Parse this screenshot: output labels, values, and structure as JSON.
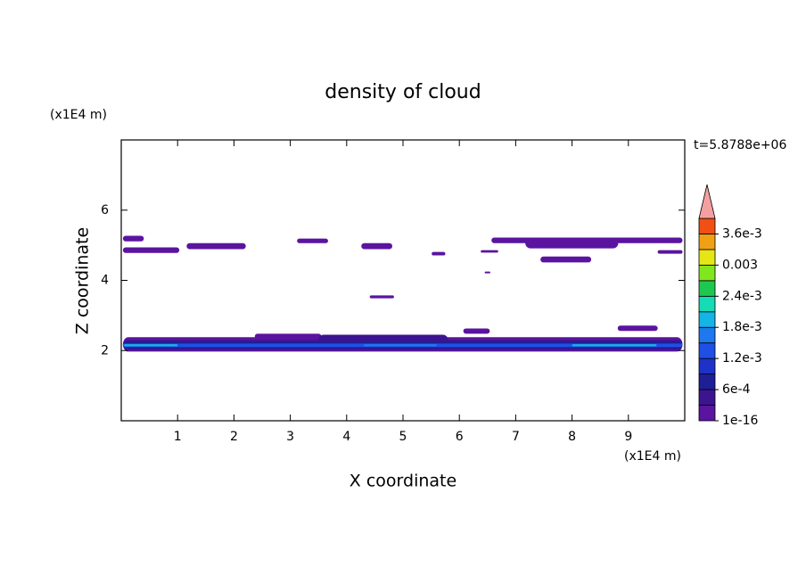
{
  "chart_data": {
    "type": "contour",
    "title": "density of cloud",
    "x_label": "X coordinate",
    "y_label": "Z coordinate",
    "x_unit": "(x1E4 m)",
    "y_unit": "(x1E4 m)",
    "time_label": "t=5.8788e+06",
    "xlim": [
      0,
      10
    ],
    "ylim": [
      0,
      8
    ],
    "xticks": [
      1,
      2,
      3,
      4,
      5,
      6,
      7,
      8,
      9
    ],
    "yticks": [
      2,
      4,
      6
    ],
    "clim": [
      0,
      0.0039
    ],
    "levels": [
      0,
      0.0003,
      0.0006,
      0.0009,
      0.0012,
      0.0015,
      0.0018,
      0.0021,
      0.0024,
      0.0027,
      0.003,
      0.0033,
      0.0036,
      0.0039
    ],
    "colors": [
      "#5a14a0",
      "#3c1490",
      "#1e1e96",
      "#1e32c8",
      "#1e50e6",
      "#1e78f0",
      "#14b4e6",
      "#14dcb4",
      "#1ec850",
      "#82e61e",
      "#e6e614",
      "#f0a014",
      "#f05014"
    ],
    "extend_color": "#f4a0a0",
    "cticks": [
      1e-16,
      {
        "value": 0.0006,
        "label": "6e-4"
      },
      {
        "value": 0.0012,
        "label": "1.2e-3"
      },
      {
        "value": 0.0018,
        "label": "1.8e-3"
      },
      {
        "value": 0.0024,
        "label": "2.4e-3"
      },
      0.003,
      {
        "value": 0.0036,
        "label": "3.6e-3"
      }
    ],
    "patches": [
      {
        "x": [
          0.03,
          0.4
        ],
        "z": [
          5.11,
          5.27
        ],
        "value": 0.00015
      },
      {
        "x": [
          0.03,
          1.03
        ],
        "z": [
          4.78,
          4.94
        ],
        "value": 0.00015
      },
      {
        "x": [
          1.16,
          2.21
        ],
        "z": [
          4.89,
          5.06
        ],
        "value": 0.00015
      },
      {
        "x": [
          3.12,
          3.67
        ],
        "z": [
          5.06,
          5.19
        ],
        "value": 0.00015
      },
      {
        "x": [
          4.26,
          4.81
        ],
        "z": [
          4.89,
          5.06
        ],
        "value": 0.00015
      },
      {
        "x": [
          5.51,
          5.75
        ],
        "z": [
          4.71,
          4.81
        ],
        "value": 0.00015
      },
      {
        "x": [
          6.38,
          6.69
        ],
        "z": [
          4.79,
          4.86
        ],
        "value": 0.00015
      },
      {
        "x": [
          6.57,
          9.96
        ],
        "z": [
          5.06,
          5.22
        ],
        "value": 0.00015
      },
      {
        "x": [
          7.17,
          8.82
        ],
        "z": [
          4.91,
          5.22
        ],
        "value": 0.00015
      },
      {
        "x": [
          7.44,
          8.34
        ],
        "z": [
          4.51,
          4.68
        ],
        "value": 0.00015
      },
      {
        "x": [
          9.52,
          9.96
        ],
        "z": [
          4.76,
          4.86
        ],
        "value": 0.00015
      },
      {
        "x": [
          6.45,
          6.55
        ],
        "z": [
          4.2,
          4.25
        ],
        "value": 0.00015
      },
      {
        "x": [
          4.41,
          4.84
        ],
        "z": [
          3.49,
          3.57
        ],
        "value": 0.00015
      },
      {
        "x": [
          8.81,
          9.52
        ],
        "z": [
          2.56,
          2.71
        ],
        "value": 0.00015
      },
      {
        "x": [
          2.37,
          3.55
        ],
        "z": [
          2.33,
          2.48
        ],
        "value": 0.00015
      },
      {
        "x": [
          6.07,
          6.54
        ],
        "z": [
          2.48,
          2.63
        ],
        "value": 0.00015
      },
      {
        "x": [
          0.03,
          9.96
        ],
        "z": [
          1.97,
          2.38
        ],
        "value": 0.00015
      },
      {
        "x": [
          3.5,
          5.8
        ],
        "z": [
          2.15,
          2.45
        ],
        "value": 0.00045
      },
      {
        "x": [
          0.03,
          9.96
        ],
        "z": [
          2.02,
          2.3
        ],
        "value": 0.00045
      },
      {
        "x": [
          0.03,
          9.96
        ],
        "z": [
          2.06,
          2.25
        ],
        "value": 0.00075
      },
      {
        "x": [
          0.03,
          9.96
        ],
        "z": [
          2.1,
          2.2
        ],
        "value": 0.00135
      },
      {
        "x": [
          0.05,
          1.0
        ],
        "z": [
          2.12,
          2.18
        ],
        "value": 0.00195
      },
      {
        "x": [
          4.3,
          5.6
        ],
        "z": [
          2.12,
          2.18
        ],
        "value": 0.00165
      },
      {
        "x": [
          8.0,
          9.5
        ],
        "z": [
          2.12,
          2.18
        ],
        "value": 0.00195
      }
    ]
  }
}
